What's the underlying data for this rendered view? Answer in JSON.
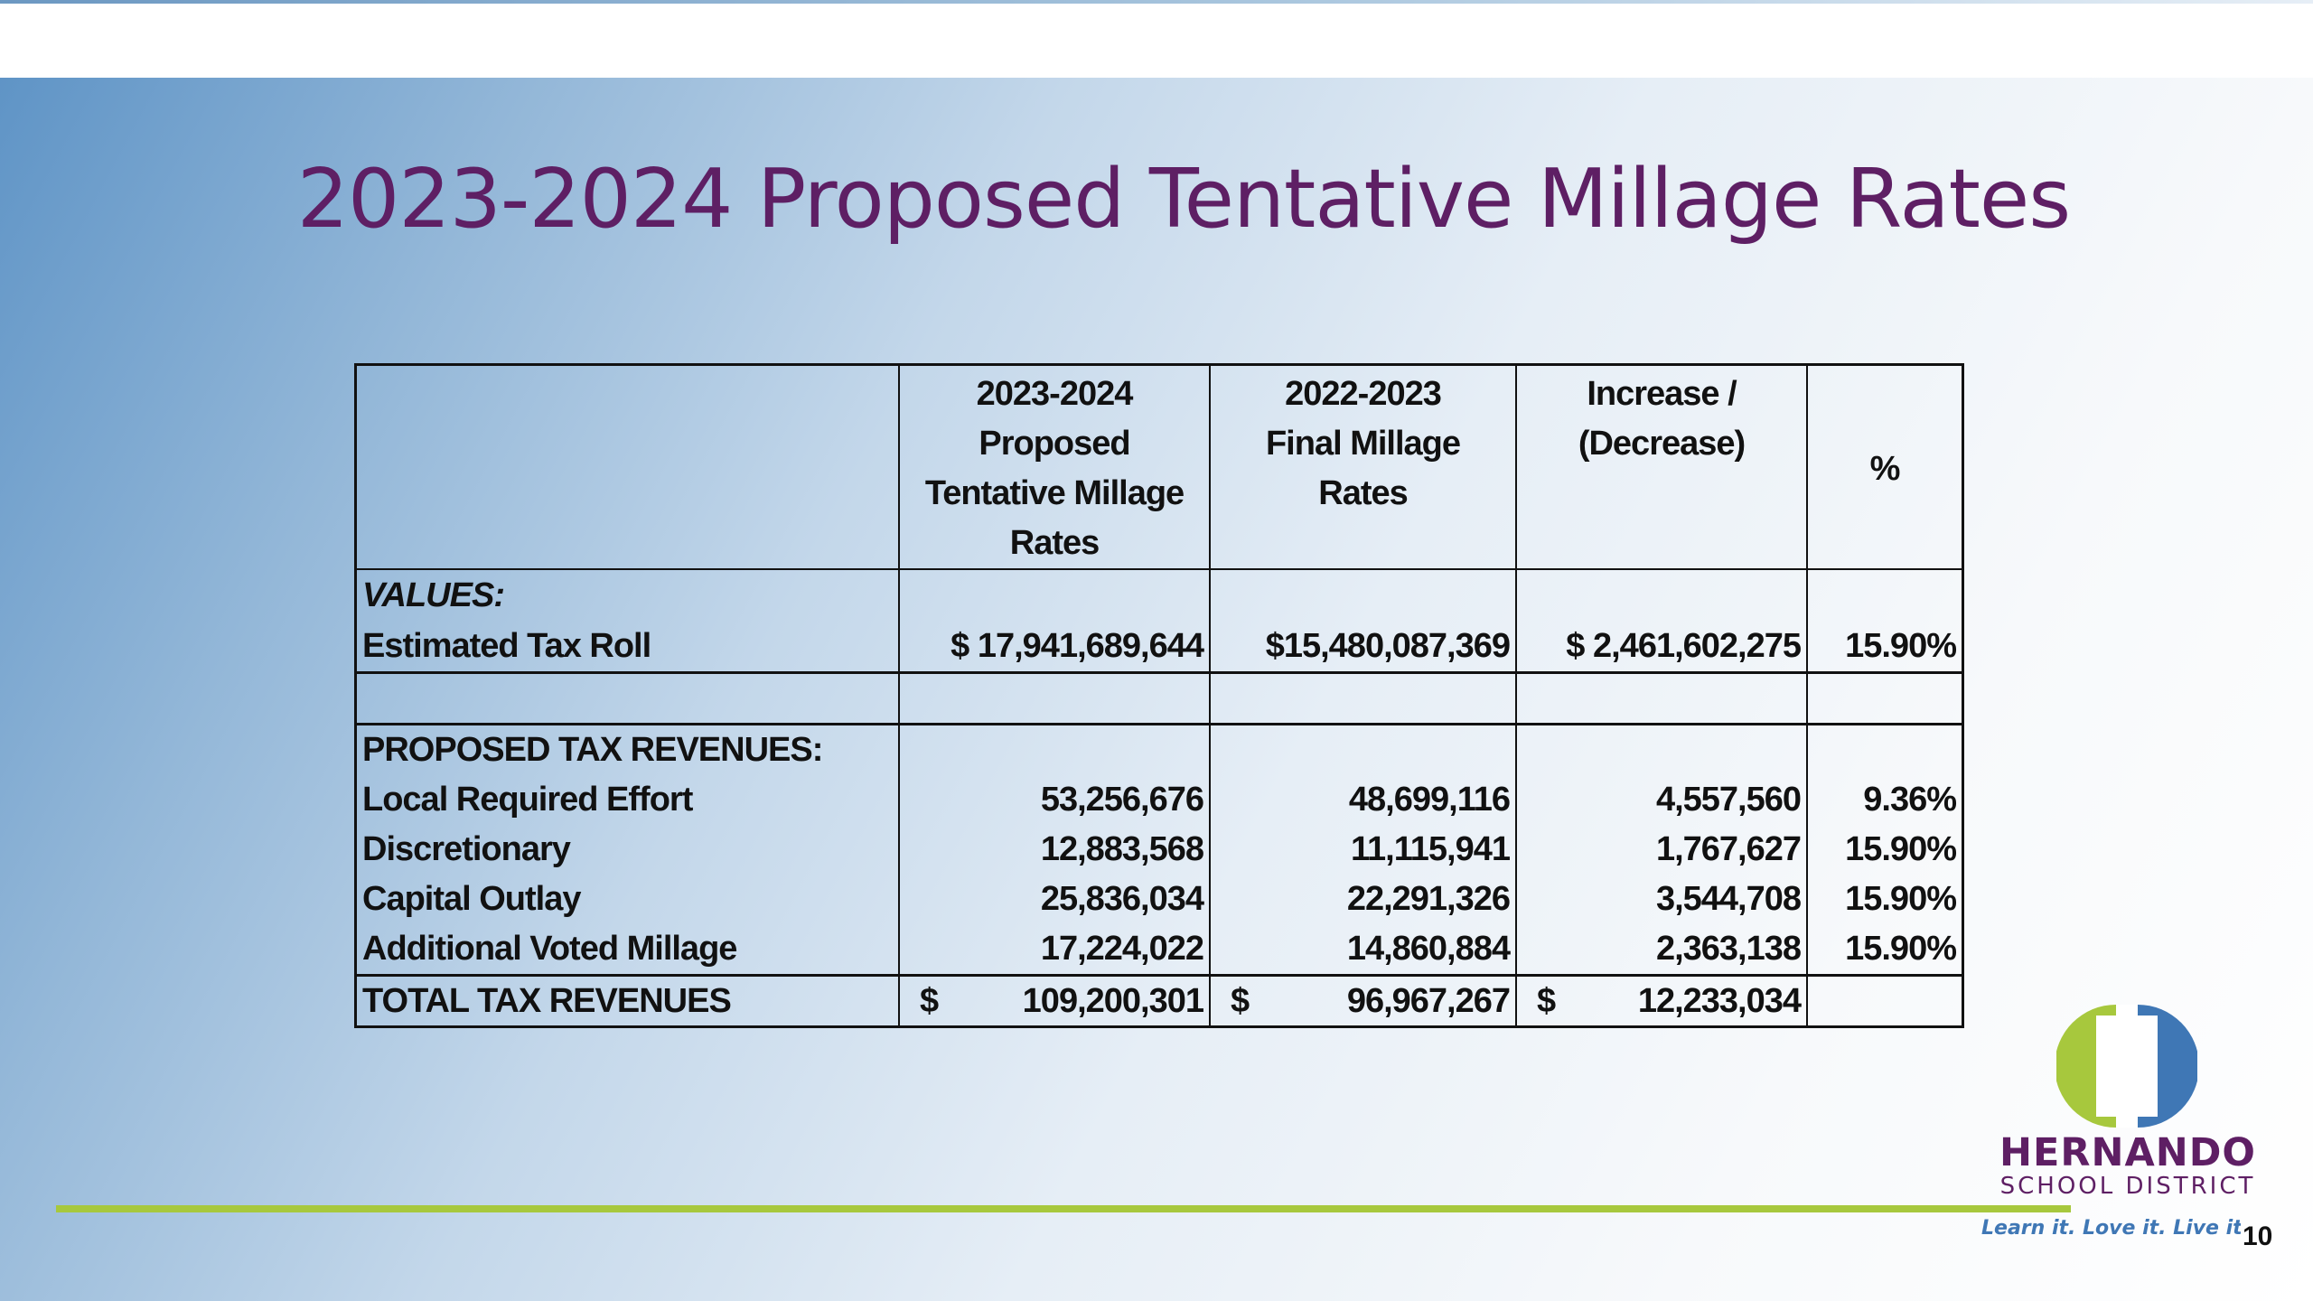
{
  "slide": {
    "title": "2023-2024 Proposed Tentative Millage Rates",
    "page_number": "10"
  },
  "table": {
    "headers": {
      "col2": [
        "2023-2024",
        "Proposed",
        "Tentative Millage",
        "Rates"
      ],
      "col3": [
        "2022-2023",
        "Final Millage",
        "Rates"
      ],
      "col4": [
        "Increase /",
        "(Decrease)"
      ],
      "col5": "%"
    },
    "values_label": "VALUES:",
    "tax_roll": {
      "label": "Estimated Tax Roll",
      "proposed": "$ 17,941,689,644",
      "final": "$15,480,087,369",
      "change": "$ 2,461,602,275",
      "pct": "15.90%"
    },
    "revenues_label": "PROPOSED TAX REVENUES:",
    "rows": [
      {
        "label": "Local Required Effort",
        "proposed": "53,256,676",
        "final": "48,699,116",
        "change": "4,557,560",
        "pct": "9.36%"
      },
      {
        "label": "Discretionary",
        "proposed": "12,883,568",
        "final": "11,115,941",
        "change": "1,767,627",
        "pct": "15.90%"
      },
      {
        "label": "Capital Outlay",
        "proposed": "25,836,034",
        "final": "22,291,326",
        "change": "3,544,708",
        "pct": "15.90%"
      },
      {
        "label": "Additional Voted Millage",
        "proposed": "17,224,022",
        "final": "14,860,884",
        "change": "2,363,138",
        "pct": "15.90%"
      }
    ],
    "total": {
      "label": "TOTAL TAX REVENUES",
      "currency": "$",
      "proposed": "109,200,301",
      "final": "96,967,267",
      "change": "12,233,034"
    }
  },
  "logo": {
    "name": "HERNANDO",
    "subtitle": "SCHOOL DISTRICT",
    "tagline": "Learn it. Love it. Live it.",
    "colors": {
      "green": "#a7c83d",
      "blue": "#3f77b5",
      "purple": "#5e1f64"
    }
  }
}
